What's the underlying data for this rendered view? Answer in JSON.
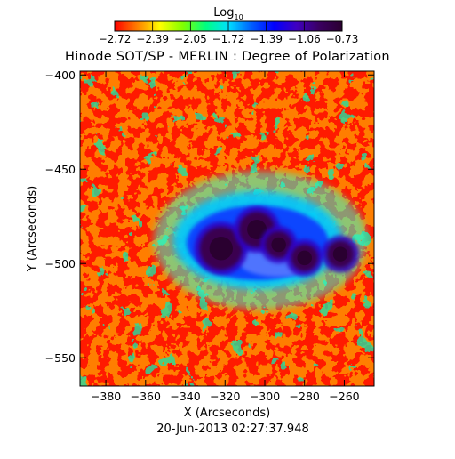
{
  "chart_data": {
    "type": "heatmap",
    "title": "Hinode SOT/SP - MERLIN : Degree of Polarization",
    "xlabel": "X (Arcseconds)",
    "ylabel": "Y (Arcseconds)",
    "timestamp": "20-Jun-2013 02:27:37.948",
    "colorbar": {
      "label_main": "Log",
      "label_sub": "10",
      "ticks": [
        "-2.72",
        "-2.39",
        "-2.05",
        "-1.72",
        "-1.39",
        "-1.06",
        "-0.73"
      ],
      "range": [
        -2.72,
        -0.73
      ],
      "colormap": [
        "#ff0000",
        "#ff8000",
        "#ffff00",
        "#80ff00",
        "#00ff80",
        "#00e0ff",
        "#0060ff",
        "#0000ff",
        "#4000c0",
        "#3a0060",
        "#2a0030"
      ]
    },
    "xlim": [
      -393,
      -245
    ],
    "ylim": [
      -565,
      -398
    ],
    "xticks": [
      -380,
      -360,
      -340,
      -320,
      -300,
      -280,
      -260
    ],
    "yticks": [
      -400,
      -450,
      -500,
      -550
    ],
    "xtick_labels": [
      "−380",
      "−360",
      "−340",
      "−320",
      "−300",
      "−280",
      "−260"
    ],
    "ytick_labels": [
      "−400",
      "−450",
      "−500",
      "−550"
    ],
    "sunspots": [
      {
        "x": -322,
        "y": -492,
        "value": -0.78
      },
      {
        "x": -304,
        "y": -482,
        "value": -0.8
      },
      {
        "x": -293,
        "y": -490,
        "value": -0.82
      },
      {
        "x": -280,
        "y": -497,
        "value": -0.8
      },
      {
        "x": -262,
        "y": -495,
        "value": -0.85
      }
    ]
  }
}
